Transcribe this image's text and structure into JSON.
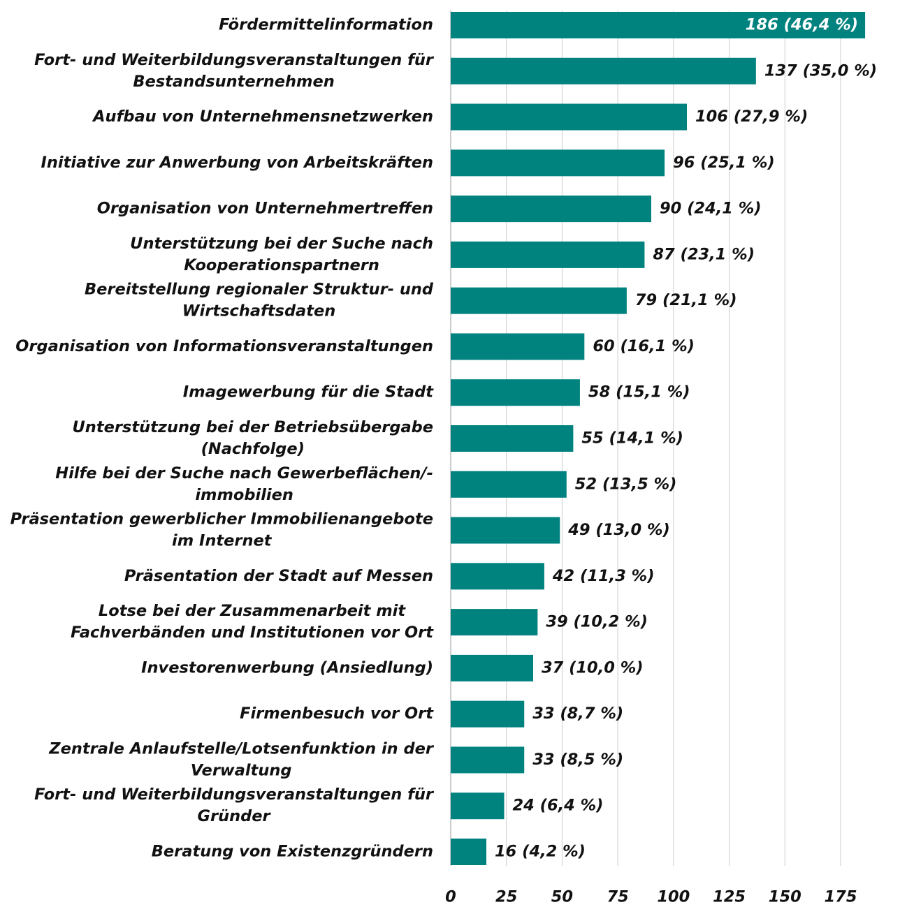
{
  "chart_data": {
    "type": "barh",
    "categories": [
      [
        "Fördermittelinformation"
      ],
      [
        "Fort- und Weiterbildungsveranstaltungen für",
        "Bestandsunternehmen"
      ],
      [
        "Aufbau von Unternehmensnetzwerken"
      ],
      [
        "Initiative zur Anwerbung von Arbeitskräften"
      ],
      [
        "Organisation von Unternehmertreffen"
      ],
      [
        "Unterstützung bei der Suche nach",
        "Kooperationspartnern"
      ],
      [
        "Bereitstellung regionaler Struktur- und",
        "Wirtschaftsdaten"
      ],
      [
        "Organisation von Informationsveranstaltungen"
      ],
      [
        "Imagewerbung für die Stadt"
      ],
      [
        "Unterstützung bei der Betriebsübergabe",
        "(Nachfolge)"
      ],
      [
        "Hilfe bei der Suche nach Gewerbeflächen/-",
        "immobilien"
      ],
      [
        "Präsentation gewerblicher Immobilienangebote",
        "im Internet"
      ],
      [
        "Präsentation der Stadt auf Messen"
      ],
      [
        "Lotse bei der Zusammenarbeit mit",
        "Fachverbänden und Institutionen vor Ort"
      ],
      [
        "Investorenwerbung (Ansiedlung)"
      ],
      [
        "Firmenbesuch vor Ort"
      ],
      [
        "Zentrale Anlaufstelle/Lotsenfunktion in der",
        "Verwaltung"
      ],
      [
        "Fort- und Weiterbildungsveranstaltungen für",
        "Gründer"
      ],
      [
        "Beratung von Existenzgründern"
      ]
    ],
    "values": [
      186,
      137,
      106,
      96,
      90,
      87,
      79,
      60,
      58,
      55,
      52,
      49,
      42,
      39,
      37,
      33,
      33,
      24,
      16
    ],
    "value_labels": [
      "186 (46,4 %)",
      "137 (35,0 %)",
      "106 (27,9 %)",
      "96 (25,1 %)",
      "90 (24,1 %)",
      "87 (23,1 %)",
      "79 (21,1 %)",
      "60 (16,1 %)",
      "58 (15,1 %)",
      "55 (14,1 %)",
      "52 (13,5 %)",
      "49 (13,0 %)",
      "42 (11,3 %)",
      "39 (10,2 %)",
      "37 (10,0 %)",
      "33 (8,7 %)",
      "33 (8,5 %)",
      "24 (6,4 %)",
      "16 (4,2 %)"
    ],
    "color": "#00827f",
    "xlim": [
      0,
      175
    ],
    "xticks": [
      0,
      25,
      50,
      75,
      100,
      125,
      150,
      175
    ],
    "grid": true
  }
}
